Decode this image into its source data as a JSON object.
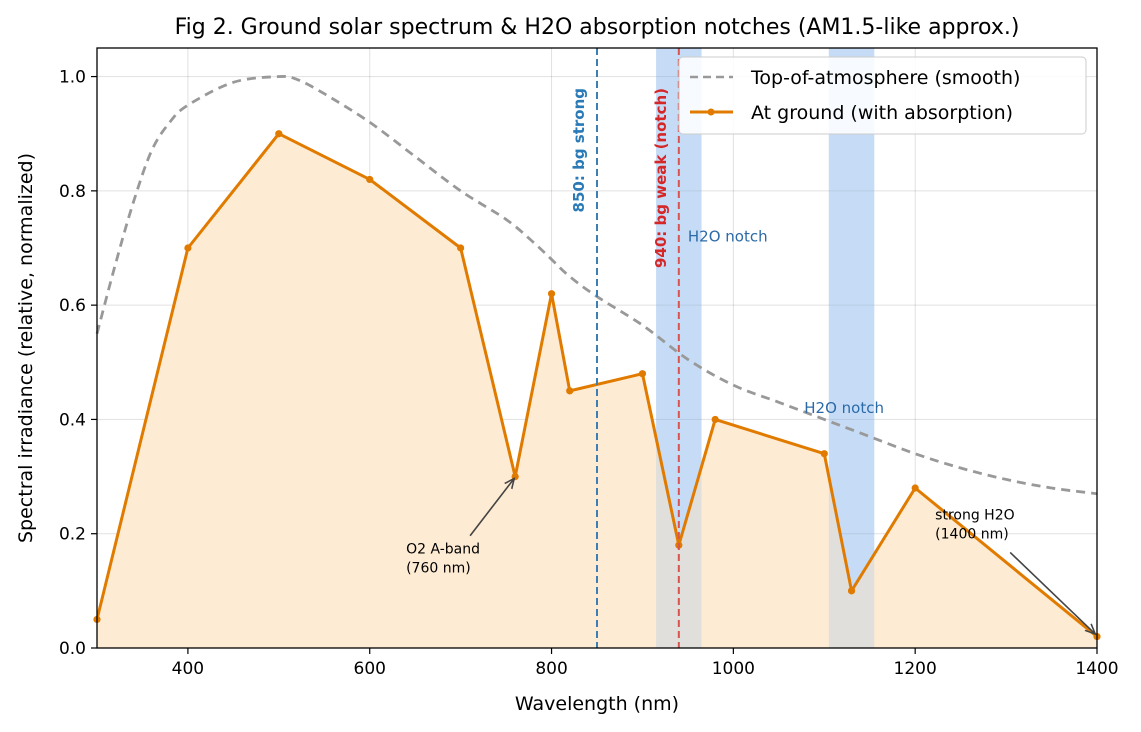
{
  "chart_data": {
    "type": "line",
    "title": "Fig 2. Ground solar spectrum & H2O absorption notches (AM1.5-like approx.)",
    "xlabel": "Wavelength (nm)",
    "ylabel": "Spectral irradiance (relative, normalized)",
    "xlim": [
      300,
      1400
    ],
    "ylim": [
      0,
      1.05
    ],
    "xticks": [
      400,
      600,
      800,
      1000,
      1200,
      1400
    ],
    "xtick_labels": [
      "400",
      "600",
      "800",
      "1000",
      "1200",
      "1400"
    ],
    "yticks": [
      0.0,
      0.2,
      0.4,
      0.6,
      0.8,
      1.0
    ],
    "ytick_labels": [
      "0.0",
      "0.2",
      "0.4",
      "0.6",
      "0.8",
      "1.0"
    ],
    "grid": true,
    "legend_position": "top-right",
    "series": [
      {
        "name": "Top-of-atmosphere (smooth)",
        "style": "dashed",
        "color": "#999999",
        "x": [
          300,
          320,
          340,
          360,
          380,
          400,
          450,
          500,
          520,
          550,
          600,
          650,
          700,
          750,
          780,
          800,
          820,
          850,
          900,
          950,
          1000,
          1050,
          1100,
          1150,
          1200,
          1250,
          1300,
          1350,
          1400
        ],
        "y": [
          0.55,
          0.67,
          0.78,
          0.87,
          0.92,
          0.95,
          0.99,
          1.0,
          0.995,
          0.97,
          0.92,
          0.86,
          0.8,
          0.75,
          0.71,
          0.68,
          0.65,
          0.615,
          0.565,
          0.505,
          0.46,
          0.43,
          0.4,
          0.37,
          0.34,
          0.315,
          0.295,
          0.28,
          0.27
        ]
      },
      {
        "name": "At ground (with absorption)",
        "style": "solid-markers",
        "color": "#e07b00",
        "fill": "#feebd3",
        "x": [
          300,
          400,
          500,
          600,
          700,
          760,
          800,
          820,
          900,
          940,
          980,
          1100,
          1130,
          1200,
          1400
        ],
        "y": [
          0.05,
          0.7,
          0.9,
          0.82,
          0.7,
          0.3,
          0.62,
          0.45,
          0.48,
          0.18,
          0.4,
          0.34,
          0.1,
          0.28,
          0.02
        ]
      }
    ],
    "bands": [
      {
        "x0": 915,
        "x1": 965,
        "color": "#c8dff9",
        "label": "H2O notch",
        "label_x": 950,
        "label_y": 0.72
      },
      {
        "x0": 1105,
        "x1": 1155,
        "color": "#c8dff9",
        "label": "H2O notch",
        "label_x": 1078,
        "label_y": 0.42
      }
    ],
    "vlines": [
      {
        "x": 850,
        "color": "#3b7fb4",
        "label": "850: bg strong",
        "label_color": "#2a7ab8"
      },
      {
        "x": 940,
        "color": "#d9534f",
        "label": "940: bg weak (notch)",
        "label_color": "#d62728"
      }
    ],
    "annotations": [
      {
        "lines": [
          "O2 A-band",
          "(760 nm)"
        ],
        "target_x": 760,
        "target_y": 0.3,
        "text_x": 640,
        "text_y": 0.165
      },
      {
        "lines": [
          "strong H2O",
          "(1400 nm)"
        ],
        "target_x": 1400,
        "target_y": 0.02,
        "text_x": 1222,
        "text_y": 0.225
      }
    ]
  }
}
